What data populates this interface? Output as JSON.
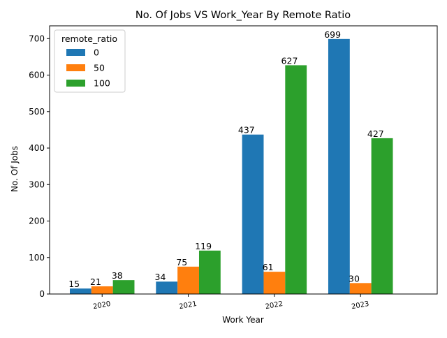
{
  "chart_data": {
    "type": "bar",
    "title": "No. Of Jobs VS Work_Year By Remote Ratio",
    "xlabel": "Work Year",
    "ylabel": "No. Of Jobs",
    "categories": [
      "2020",
      "2021",
      "2022",
      "2023"
    ],
    "series": [
      {
        "name": "0",
        "color": "#1f77b4",
        "values": [
          15,
          34,
          437,
          699
        ]
      },
      {
        "name": "50",
        "color": "#ff7f0e",
        "values": [
          21,
          75,
          61,
          30
        ]
      },
      {
        "name": "100",
        "color": "#2ca02c",
        "values": [
          38,
          119,
          627,
          427
        ]
      }
    ],
    "data_labels": [
      [
        "15",
        "34",
        "437",
        "699"
      ],
      [
        "21",
        "75",
        "61",
        "30"
      ],
      [
        "38",
        "119",
        "627",
        "427"
      ]
    ],
    "ylim": [
      0,
      735
    ],
    "yticks": [
      0,
      100,
      200,
      300,
      400,
      500,
      600,
      700
    ],
    "grid": false,
    "legend": {
      "title": "remote_ratio",
      "placement": "upper-left"
    }
  }
}
